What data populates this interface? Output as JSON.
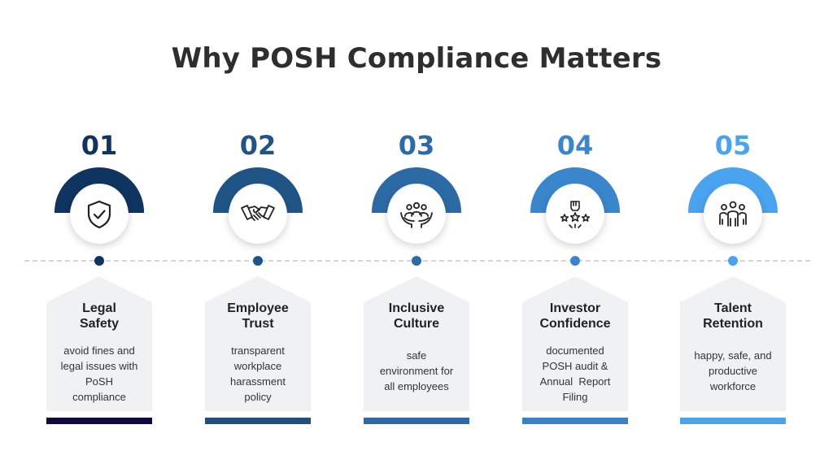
{
  "title": "Why POSH Compliance Matters",
  "steps": [
    {
      "number": "01",
      "title_lines": [
        "Legal",
        "Safety"
      ],
      "desc_lines": [
        "avoid fines and",
        "legal issues with",
        "PoSH",
        "compliance"
      ],
      "icon": "shield-check-icon",
      "color": "#0f3460",
      "bar_color": "#0c0a3e"
    },
    {
      "number": "02",
      "title_lines": [
        "Employee",
        "Trust"
      ],
      "desc_lines": [
        "transparent",
        "workplace",
        "harassment",
        "policy"
      ],
      "icon": "handshake-icon",
      "color": "#1f5586",
      "bar_color": "#1f4f7e"
    },
    {
      "number": "03",
      "title_lines": [
        "Inclusive",
        "Culture"
      ],
      "desc_lines": [
        "safe",
        "environment for",
        "all employees"
      ],
      "icon": "community-hands-icon",
      "color": "#2c6aa6",
      "bar_color": "#2d6aa6"
    },
    {
      "number": "04",
      "title_lines": [
        "Investor",
        "Confidence"
      ],
      "desc_lines": [
        "documented",
        "POSH audit &",
        "Annual  Report",
        "Filing"
      ],
      "icon": "fist-stars-icon",
      "color": "#3a86cc",
      "bar_color": "#3a82c4"
    },
    {
      "number": "05",
      "title_lines": [
        "Talent",
        "Retention"
      ],
      "desc_lines": [
        "happy, safe, and",
        "productive",
        "workforce"
      ],
      "icon": "team-people-icon",
      "color": "#4aa3ee",
      "bar_color": "#4da3ea"
    }
  ]
}
